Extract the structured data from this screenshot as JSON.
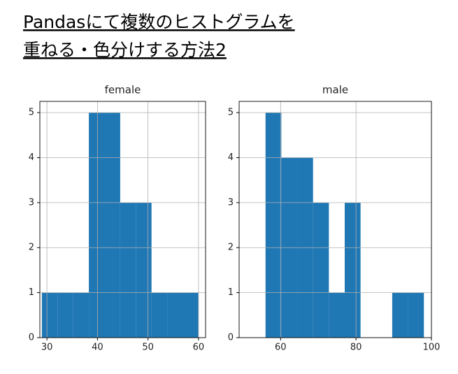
{
  "header": {
    "title_lines": [
      "Pandasにて複数のヒストグラムを",
      "重ねる・色分けする方法2"
    ]
  },
  "chart_data": [
    {
      "type": "histogram",
      "title": "female",
      "color": "#1f77b4",
      "grid": true,
      "bins": [
        29,
        32.1,
        35.2,
        38.3,
        41.4,
        44.5,
        47.6,
        50.7,
        53.8,
        56.9,
        60
      ],
      "values": [
        1,
        1,
        1,
        5,
        5,
        3,
        3,
        1,
        1,
        1
      ],
      "xlim": [
        28.6,
        61.4
      ],
      "xticks": [
        30,
        40,
        50,
        60
      ],
      "ylim": [
        0,
        5.25
      ],
      "yticks": [
        0,
        1,
        2,
        3,
        4,
        5
      ]
    },
    {
      "type": "histogram",
      "title": "male",
      "color": "#1f77b4",
      "grid": true,
      "bins": [
        56,
        60.2,
        64.4,
        68.6,
        72.8,
        77,
        81.2,
        85.4,
        89.6,
        93.8,
        98
      ],
      "values": [
        5,
        4,
        4,
        3,
        1,
        3,
        0,
        0,
        1,
        1
      ],
      "xlim": [
        49,
        100
      ],
      "xticks": [
        60,
        80,
        100
      ],
      "ylim": [
        0,
        5.25
      ],
      "yticks": [
        0,
        1,
        2,
        3,
        4,
        5
      ]
    }
  ]
}
